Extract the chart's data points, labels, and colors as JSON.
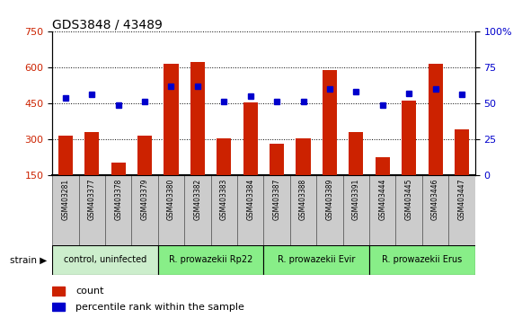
{
  "title": "GDS3848 / 43489",
  "samples": [
    "GSM403281",
    "GSM403377",
    "GSM403378",
    "GSM403379",
    "GSM403380",
    "GSM403382",
    "GSM403383",
    "GSM403384",
    "GSM403387",
    "GSM403388",
    "GSM403389",
    "GSM403391",
    "GSM403444",
    "GSM403445",
    "GSM403446",
    "GSM403447"
  ],
  "counts": [
    315,
    330,
    200,
    315,
    615,
    625,
    305,
    455,
    280,
    305,
    590,
    330,
    225,
    460,
    615,
    340
  ],
  "percentiles": [
    54,
    56,
    49,
    51,
    62,
    62,
    51,
    55,
    51,
    51,
    60,
    58,
    49,
    57,
    60,
    56
  ],
  "ylim_left": [
    150,
    750
  ],
  "ylim_right": [
    0,
    100
  ],
  "yticks_left": [
    150,
    300,
    450,
    600,
    750
  ],
  "yticks_right": [
    0,
    25,
    50,
    75,
    100
  ],
  "group_boundaries": [
    {
      "start": 0,
      "end": 3,
      "label": "control, uninfected",
      "color": "#cceecc"
    },
    {
      "start": 4,
      "end": 7,
      "label": "R. prowazekii Rp22",
      "color": "#88ee88"
    },
    {
      "start": 8,
      "end": 11,
      "label": "R. prowazekii Evir",
      "color": "#88ee88"
    },
    {
      "start": 12,
      "end": 15,
      "label": "R. prowazekii Erus",
      "color": "#88ee88"
    }
  ],
  "bar_color": "#cc2200",
  "dot_color": "#0000cc",
  "grid_color": "#000000",
  "tick_color_left": "#cc2200",
  "tick_color_right": "#0000cc",
  "sample_box_color": "#cccccc",
  "background_color": "#ffffff",
  "bar_width": 0.55
}
